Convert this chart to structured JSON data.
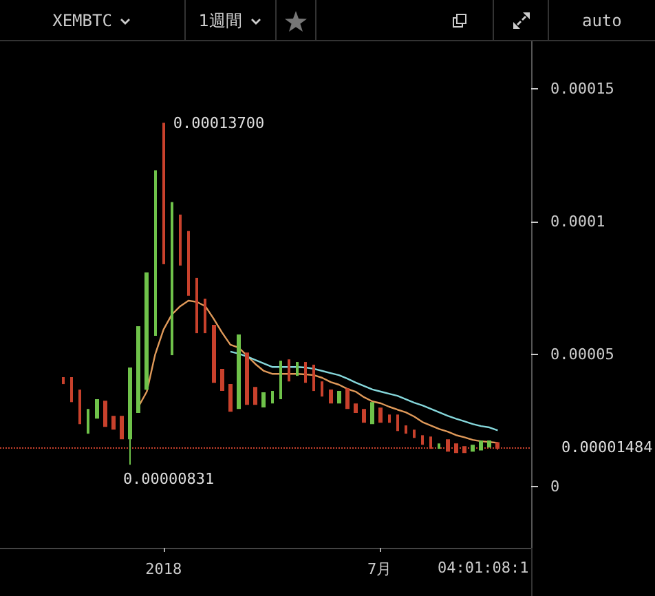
{
  "chart_data": {
    "type": "candlestick",
    "title": "XEMBTC",
    "x": [
      "2017-10-09",
      "2017-10-16",
      "2017-10-23",
      "2017-10-30",
      "2017-11-06",
      "2017-11-13",
      "2017-11-20",
      "2017-11-27",
      "2017-12-04",
      "2017-12-11",
      "2017-12-18",
      "2017-12-25",
      "2018-01-01",
      "2018-01-08",
      "2018-01-15",
      "2018-01-22",
      "2018-01-29",
      "2018-02-05",
      "2018-02-12",
      "2018-02-19",
      "2018-02-26",
      "2018-03-05",
      "2018-03-12",
      "2018-03-19",
      "2018-03-26",
      "2018-04-02",
      "2018-04-09",
      "2018-04-16",
      "2018-04-23",
      "2018-04-30",
      "2018-05-07",
      "2018-05-14",
      "2018-05-21",
      "2018-05-28",
      "2018-06-04",
      "2018-06-11",
      "2018-06-18",
      "2018-06-25",
      "2018-07-02",
      "2018-07-09",
      "2018-07-16",
      "2018-07-23",
      "2018-07-30",
      "2018-08-06",
      "2018-08-13",
      "2018-08-20",
      "2018-08-27",
      "2018-09-03",
      "2018-09-10",
      "2018-09-17",
      "2018-09-24",
      "2018-10-01",
      "2018-10-08"
    ],
    "ohlc": [
      [
        4.11e-05,
        4.11e-05,
        3.9e-05,
        3.9e-05
      ],
      [
        4.11e-05,
        4.11e-05,
        3.22e-05,
        3.22e-05
      ],
      [
        3.64e-05,
        3.64e-05,
        2.39e-05,
        2.39e-05
      ],
      [
        2.03e-05,
        2.91e-05,
        2.03e-05,
        2.91e-05
      ],
      [
        2.6e-05,
        3.28e-05,
        2.6e-05,
        3.28e-05
      ],
      [
        3.22e-05,
        3.22e-05,
        2.29e-05,
        2.29e-05
      ],
      [
        2.65e-05,
        2.65e-05,
        2.18e-05,
        2.18e-05
      ],
      [
        2.65e-05,
        2.65e-05,
        1.82e-05,
        1.82e-05
      ],
      [
        1.82e-05,
        4.47e-05,
        8.31e-06,
        4.47e-05
      ],
      [
        2.81e-05,
        6.03e-05,
        2.81e-05,
        6.03e-05
      ],
      [
        3.69e-05,
        8.06e-05,
        3.69e-05,
        8.06e-05
      ],
      [
        5.72e-05,
        0.0001191,
        5.72e-05,
        0.0001191
      ],
      [
        0.000137,
        0.000137,
        8.42e-05,
        8.42e-05
      ],
      [
        4.99e-05,
        0.0001071,
        4.99e-05,
        0.0001071
      ],
      [
        0.0001024,
        0.0001024,
        8.37e-05,
        8.37e-05
      ],
      [
        9.62e-05,
        9.62e-05,
        7.23e-05,
        7.23e-05
      ],
      [
        7.85e-05,
        7.85e-05,
        5.82e-05,
        5.82e-05
      ],
      [
        7.07e-05,
        7.07e-05,
        5.82e-05,
        5.82e-05
      ],
      [
        6.08e-05,
        6.08e-05,
        3.95e-05,
        3.95e-05
      ],
      [
        4.42e-05,
        4.42e-05,
        3.64e-05,
        3.64e-05
      ],
      [
        3.85e-05,
        3.85e-05,
        2.86e-05,
        2.86e-05
      ],
      [
        2.96e-05,
        5.72e-05,
        2.96e-05,
        5.72e-05
      ],
      [
        5.04e-05,
        5.04e-05,
        3.12e-05,
        3.12e-05
      ],
      [
        3.74e-05,
        3.74e-05,
        3.12e-05,
        3.12e-05
      ],
      [
        3.02e-05,
        3.54e-05,
        3.02e-05,
        3.54e-05
      ],
      [
        3.17e-05,
        3.59e-05,
        3.17e-05,
        3.59e-05
      ],
      [
        3.33e-05,
        4.73e-05,
        3.33e-05,
        4.73e-05
      ],
      [
        4.78e-05,
        4.78e-05,
        4e-05,
        4e-05
      ],
      [
        4.21e-05,
        4.68e-05,
        4.21e-05,
        4.68e-05
      ],
      [
        4.68e-05,
        4.68e-05,
        3.95e-05,
        3.95e-05
      ],
      [
        4.58e-05,
        4.58e-05,
        3.64e-05,
        3.64e-05
      ],
      [
        3.95e-05,
        3.95e-05,
        3.43e-05,
        3.43e-05
      ],
      [
        3.64e-05,
        3.64e-05,
        3.17e-05,
        3.17e-05
      ],
      [
        3.17e-05,
        3.59e-05,
        3.17e-05,
        3.59e-05
      ],
      [
        3.69e-05,
        3.69e-05,
        2.96e-05,
        2.96e-05
      ],
      [
        3.12e-05,
        3.12e-05,
        2.81e-05,
        2.81e-05
      ],
      [
        2.91e-05,
        2.91e-05,
        2.44e-05,
        2.44e-05
      ],
      [
        2.39e-05,
        3.17e-05,
        2.39e-05,
        3.17e-05
      ],
      [
        2.96e-05,
        2.96e-05,
        2.44e-05,
        2.44e-05
      ],
      [
        2.7e-05,
        2.7e-05,
        2.44e-05,
        2.44e-05
      ],
      [
        2.7e-05,
        2.7e-05,
        2.13e-05,
        2.13e-05
      ],
      [
        2.29e-05,
        2.29e-05,
        2.03e-05,
        2.03e-05
      ],
      [
        2.13e-05,
        2.13e-05,
        1.87e-05,
        1.87e-05
      ],
      [
        1.92e-05,
        1.92e-05,
        1.61e-05,
        1.61e-05
      ],
      [
        1.87e-05,
        1.87e-05,
        1.46e-05,
        1.46e-05
      ],
      [
        1.46e-05,
        1.61e-05,
        1.46e-05,
        1.61e-05
      ],
      [
        1.77e-05,
        1.77e-05,
        1.35e-05,
        1.35e-05
      ],
      [
        1.61e-05,
        1.61e-05,
        1.3e-05,
        1.3e-05
      ],
      [
        1.51e-05,
        1.51e-05,
        1.3e-05,
        1.3e-05
      ],
      [
        1.35e-05,
        1.56e-05,
        1.35e-05,
        1.56e-05
      ],
      [
        1.4e-05,
        1.72e-05,
        1.4e-05,
        1.72e-05
      ],
      [
        1.51e-05,
        1.72e-05,
        1.51e-05,
        1.72e-05
      ],
      [
        1.66e-05,
        1.66e-05,
        1.4e-05,
        1.484e-05
      ]
    ],
    "colors": [
      "#c8412c",
      "#c8412c",
      "#c8412c",
      "#6fc24a",
      "#6fc24a",
      "#c8412c",
      "#c8412c",
      "#c8412c",
      "#6fc24a",
      "#6fc24a",
      "#6fc24a",
      "#6fc24a",
      "#c8412c",
      "#6fc24a",
      "#c8412c",
      "#c8412c",
      "#c8412c",
      "#c8412c",
      "#c8412c",
      "#c8412c",
      "#c8412c",
      "#6fc24a",
      "#c8412c",
      "#c8412c",
      "#6fc24a",
      "#6fc24a",
      "#6fc24a",
      "#c8412c",
      "#6fc24a",
      "#c8412c",
      "#c8412c",
      "#c8412c",
      "#c8412c",
      "#6fc24a",
      "#c8412c",
      "#c8412c",
      "#c8412c",
      "#6fc24a",
      "#c8412c",
      "#c8412c",
      "#c8412c",
      "#c8412c",
      "#c8412c",
      "#c8412c",
      "#c8412c",
      "#6fc24a",
      "#c8412c",
      "#c8412c",
      "#c8412c",
      "#6fc24a",
      "#6fc24a",
      "#6fc24a",
      "#c8412c"
    ],
    "series": [
      {
        "type": "line",
        "color": "#e09a5a",
        "values": [
          null,
          null,
          null,
          null,
          null,
          null,
          null,
          null,
          null,
          3.02e-05,
          3.59e-05,
          4.99e-05,
          5.93e-05,
          6.5e-05,
          6.81e-05,
          7.02e-05,
          6.97e-05,
          6.81e-05,
          6.34e-05,
          5.82e-05,
          5.36e-05,
          5.25e-05,
          4.94e-05,
          4.63e-05,
          4.37e-05,
          4.26e-05,
          4.26e-05,
          4.26e-05,
          4.26e-05,
          4.24e-05,
          4.21e-05,
          4.11e-05,
          3.95e-05,
          3.85e-05,
          3.69e-05,
          3.59e-05,
          3.38e-05,
          3.22e-05,
          3.15e-05,
          3.02e-05,
          2.91e-05,
          2.81e-05,
          2.65e-05,
          2.44e-05,
          2.31e-05,
          2.18e-05,
          2.08e-05,
          1.95e-05,
          1.87e-05,
          1.77e-05,
          1.72e-05,
          1.69e-05,
          1.66e-05
        ]
      },
      {
        "type": "line",
        "color": "#86d8dc",
        "values": [
          null,
          null,
          null,
          null,
          null,
          null,
          null,
          null,
          null,
          null,
          null,
          null,
          null,
          null,
          null,
          null,
          null,
          null,
          null,
          null,
          5.1e-05,
          5.02e-05,
          4.91e-05,
          4.78e-05,
          4.65e-05,
          4.52e-05,
          4.52e-05,
          4.52e-05,
          4.52e-05,
          4.5e-05,
          4.45e-05,
          4.37e-05,
          4.29e-05,
          4.21e-05,
          4.08e-05,
          3.93e-05,
          3.8e-05,
          3.67e-05,
          3.59e-05,
          3.51e-05,
          3.43e-05,
          3.3e-05,
          3.17e-05,
          3.07e-05,
          2.94e-05,
          2.81e-05,
          2.68e-05,
          2.57e-05,
          2.47e-05,
          2.37e-05,
          2.29e-05,
          2.24e-05,
          2.13e-05
        ]
      }
    ],
    "xlim": [
      "2017-08-17",
      "2018-11-05"
    ],
    "xticks": [
      {
        "value": "2018-01-01",
        "label": "2018"
      },
      {
        "value": "2018-07-01",
        "label": "7月"
      }
    ],
    "ylim": [
      -2.3e-05,
      0.000168
    ],
    "yticks": [
      0,
      {
        "value": 5e-05,
        "label": "0.00005"
      },
      0.0001,
      0.00015
    ],
    "ref_lines": [
      {
        "axis": "y",
        "value": 1.484e-05,
        "label": "0.00001484",
        "color": "#c8412c",
        "line_style": "dotted"
      }
    ],
    "annotations": [
      "1週間",
      "auto",
      {
        "text": "0.00013700",
        "x": "2018-01-01",
        "y": 0.000137
      },
      {
        "text": "0.00000831",
        "x": "2017-12-04",
        "y": 8.31e-06
      },
      "04:01:08:1"
    ]
  }
}
